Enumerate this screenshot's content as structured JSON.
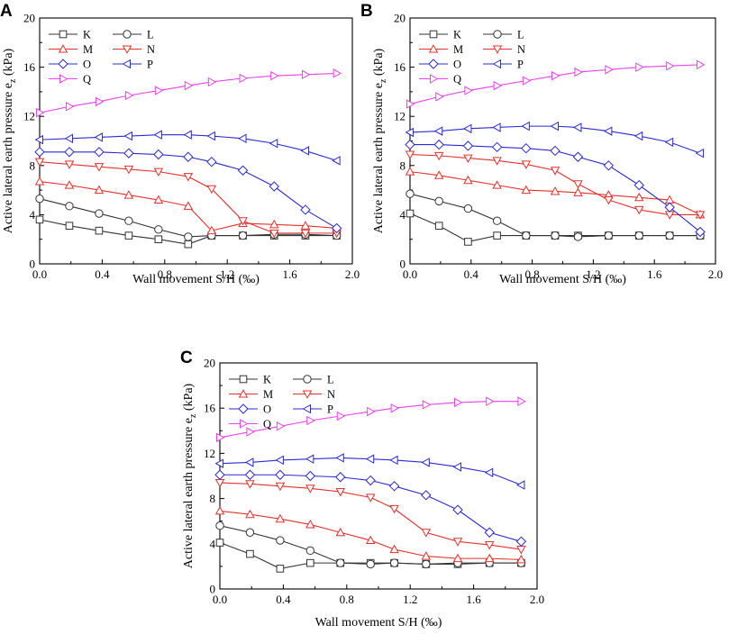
{
  "figure": {
    "panels": [
      "A",
      "B",
      "C"
    ],
    "colors": {
      "black": "#1a1a1a",
      "gray": "#333333",
      "red": "#e8312a",
      "blue": "#2a2ad6",
      "magenta": "#ee3ff0"
    }
  },
  "chart_data": [
    {
      "panel": "A",
      "type": "line",
      "xlabel": "Wall movement S/H (‰)",
      "ylabel_main": "Active lateral earth pressure e",
      "ylabel_sub": "z",
      "ylabel_unit": " (kPa)",
      "xlim": [
        0,
        2.0
      ],
      "ylim": [
        0,
        20
      ],
      "xticks": [
        "0.0",
        "0.4",
        "0.8",
        "1.2",
        "1.6",
        "2.0"
      ],
      "yticks": [
        "0",
        "4",
        "8",
        "12",
        "16",
        "20"
      ],
      "legend": [
        "K",
        "L",
        "M",
        "N",
        "O",
        "P",
        "Q"
      ],
      "x": [
        0,
        0.19,
        0.38,
        0.57,
        0.76,
        0.95,
        1.1,
        1.3,
        1.5,
        1.7,
        1.9
      ],
      "series": [
        {
          "name": "K",
          "color": "#333333",
          "marker": "square",
          "values": [
            3.6,
            3.1,
            2.7,
            2.3,
            2.0,
            1.6,
            2.3,
            2.3,
            2.3,
            2.3,
            2.3
          ]
        },
        {
          "name": "L",
          "color": "#333333",
          "marker": "circle",
          "values": [
            5.3,
            4.7,
            4.1,
            3.5,
            2.8,
            2.2,
            2.3,
            2.3,
            2.4,
            2.4,
            2.3
          ]
        },
        {
          "name": "M",
          "color": "#e8312a",
          "marker": "triangle-up",
          "values": [
            6.7,
            6.4,
            6.0,
            5.6,
            5.2,
            4.7,
            2.7,
            3.3,
            3.2,
            3.1,
            2.9
          ]
        },
        {
          "name": "N",
          "color": "#e8312a",
          "marker": "triangle-down",
          "values": [
            8.3,
            8.1,
            7.9,
            7.7,
            7.5,
            7.1,
            6.1,
            3.5,
            2.5,
            2.5,
            2.5
          ]
        },
        {
          "name": "O",
          "color": "#2a2ad6",
          "marker": "diamond",
          "values": [
            9.1,
            9.1,
            9.1,
            9.0,
            8.9,
            8.7,
            8.3,
            7.6,
            6.3,
            4.4,
            2.9
          ]
        },
        {
          "name": "P",
          "color": "#2a2ad6",
          "marker": "triangle-left",
          "values": [
            10.1,
            10.2,
            10.3,
            10.4,
            10.5,
            10.5,
            10.4,
            10.2,
            9.8,
            9.2,
            8.4
          ]
        },
        {
          "name": "Q",
          "color": "#ee3ff0",
          "marker": "triangle-right",
          "values": [
            12.3,
            12.8,
            13.2,
            13.7,
            14.1,
            14.5,
            14.8,
            15.1,
            15.3,
            15.4,
            15.5
          ]
        }
      ]
    },
    {
      "panel": "B",
      "type": "line",
      "xlabel": "Wall movement S/H (‰)",
      "ylabel_main": "Active lateral earth pressure e",
      "ylabel_sub": "z",
      "ylabel_unit": " (kPa)",
      "xlim": [
        0,
        2.0
      ],
      "ylim": [
        0,
        20
      ],
      "xticks": [
        "0.0",
        "0.4",
        "0.8",
        "1.2",
        "1.6",
        "2.0"
      ],
      "yticks": [
        "0",
        "4",
        "8",
        "12",
        "16",
        "20"
      ],
      "legend": [
        "K",
        "L",
        "M",
        "N",
        "O",
        "P",
        "Q"
      ],
      "x": [
        0,
        0.19,
        0.38,
        0.57,
        0.76,
        0.95,
        1.1,
        1.3,
        1.5,
        1.7,
        1.9
      ],
      "series": [
        {
          "name": "K",
          "color": "#333333",
          "marker": "square",
          "values": [
            4.1,
            3.1,
            1.8,
            2.3,
            2.3,
            2.3,
            2.3,
            2.3,
            2.3,
            2.3,
            2.3
          ]
        },
        {
          "name": "L",
          "color": "#333333",
          "marker": "circle",
          "values": [
            5.7,
            5.1,
            4.5,
            3.5,
            2.3,
            2.3,
            2.2,
            2.3,
            2.3,
            2.3,
            2.3
          ]
        },
        {
          "name": "M",
          "color": "#e8312a",
          "marker": "triangle-up",
          "values": [
            7.5,
            7.2,
            6.8,
            6.4,
            6.0,
            5.9,
            5.8,
            5.6,
            5.4,
            5.2,
            4.0
          ]
        },
        {
          "name": "N",
          "color": "#e8312a",
          "marker": "triangle-down",
          "values": [
            8.9,
            8.8,
            8.6,
            8.4,
            8.1,
            7.6,
            6.5,
            5.2,
            4.4,
            4.0,
            4.0
          ]
        },
        {
          "name": "O",
          "color": "#2a2ad6",
          "marker": "diamond",
          "values": [
            9.7,
            9.7,
            9.6,
            9.5,
            9.4,
            9.2,
            8.7,
            8.0,
            6.4,
            4.6,
            2.6
          ]
        },
        {
          "name": "P",
          "color": "#2a2ad6",
          "marker": "triangle-left",
          "values": [
            10.7,
            10.8,
            11.0,
            11.1,
            11.2,
            11.2,
            11.1,
            10.8,
            10.4,
            9.9,
            9.0
          ]
        },
        {
          "name": "Q",
          "color": "#ee3ff0",
          "marker": "triangle-right",
          "values": [
            13.0,
            13.6,
            14.1,
            14.5,
            14.9,
            15.3,
            15.6,
            15.8,
            16.0,
            16.1,
            16.2
          ]
        }
      ]
    },
    {
      "panel": "C",
      "type": "line",
      "xlabel": "Wall movement S/H (‰)",
      "ylabel_main": "Active lateral earth pressure e",
      "ylabel_sub": "z",
      "ylabel_unit": " (kPa)",
      "xlim": [
        0,
        2.0
      ],
      "ylim": [
        0,
        20
      ],
      "xticks": [
        "0.0",
        "0.4",
        "0.8",
        "1.2",
        "1.6",
        "2.0"
      ],
      "yticks": [
        "0",
        "4",
        "8",
        "12",
        "16",
        "20"
      ],
      "legend": [
        "K",
        "L",
        "M",
        "N",
        "O",
        "P",
        "Q"
      ],
      "x": [
        0,
        0.19,
        0.38,
        0.57,
        0.76,
        0.95,
        1.1,
        1.3,
        1.5,
        1.7,
        1.9
      ],
      "series": [
        {
          "name": "K",
          "color": "#333333",
          "marker": "square",
          "values": [
            4.1,
            3.1,
            1.8,
            2.3,
            2.3,
            2.3,
            2.3,
            2.2,
            2.2,
            2.3,
            2.3
          ]
        },
        {
          "name": "L",
          "color": "#333333",
          "marker": "circle",
          "values": [
            5.6,
            5.0,
            4.3,
            3.4,
            2.3,
            2.2,
            2.3,
            2.2,
            2.3,
            2.3,
            2.3
          ]
        },
        {
          "name": "M",
          "color": "#e8312a",
          "marker": "triangle-up",
          "values": [
            6.9,
            6.6,
            6.2,
            5.7,
            5.0,
            4.3,
            3.5,
            2.9,
            2.7,
            2.7,
            2.6
          ]
        },
        {
          "name": "N",
          "color": "#e8312a",
          "marker": "triangle-down",
          "values": [
            9.4,
            9.3,
            9.1,
            8.9,
            8.6,
            8.1,
            7.1,
            5.0,
            4.2,
            3.9,
            3.5
          ]
        },
        {
          "name": "O",
          "color": "#2a2ad6",
          "marker": "diamond",
          "values": [
            10.1,
            10.1,
            10.1,
            10.0,
            9.9,
            9.6,
            9.1,
            8.3,
            7.0,
            5.0,
            4.2
          ]
        },
        {
          "name": "P",
          "color": "#2a2ad6",
          "marker": "triangle-left",
          "values": [
            11.1,
            11.2,
            11.4,
            11.5,
            11.6,
            11.5,
            11.4,
            11.2,
            10.8,
            10.3,
            9.2
          ]
        },
        {
          "name": "Q",
          "color": "#ee3ff0",
          "marker": "triangle-right",
          "values": [
            13.4,
            13.9,
            14.4,
            14.9,
            15.3,
            15.7,
            16.0,
            16.3,
            16.5,
            16.6,
            16.6
          ]
        }
      ]
    }
  ]
}
